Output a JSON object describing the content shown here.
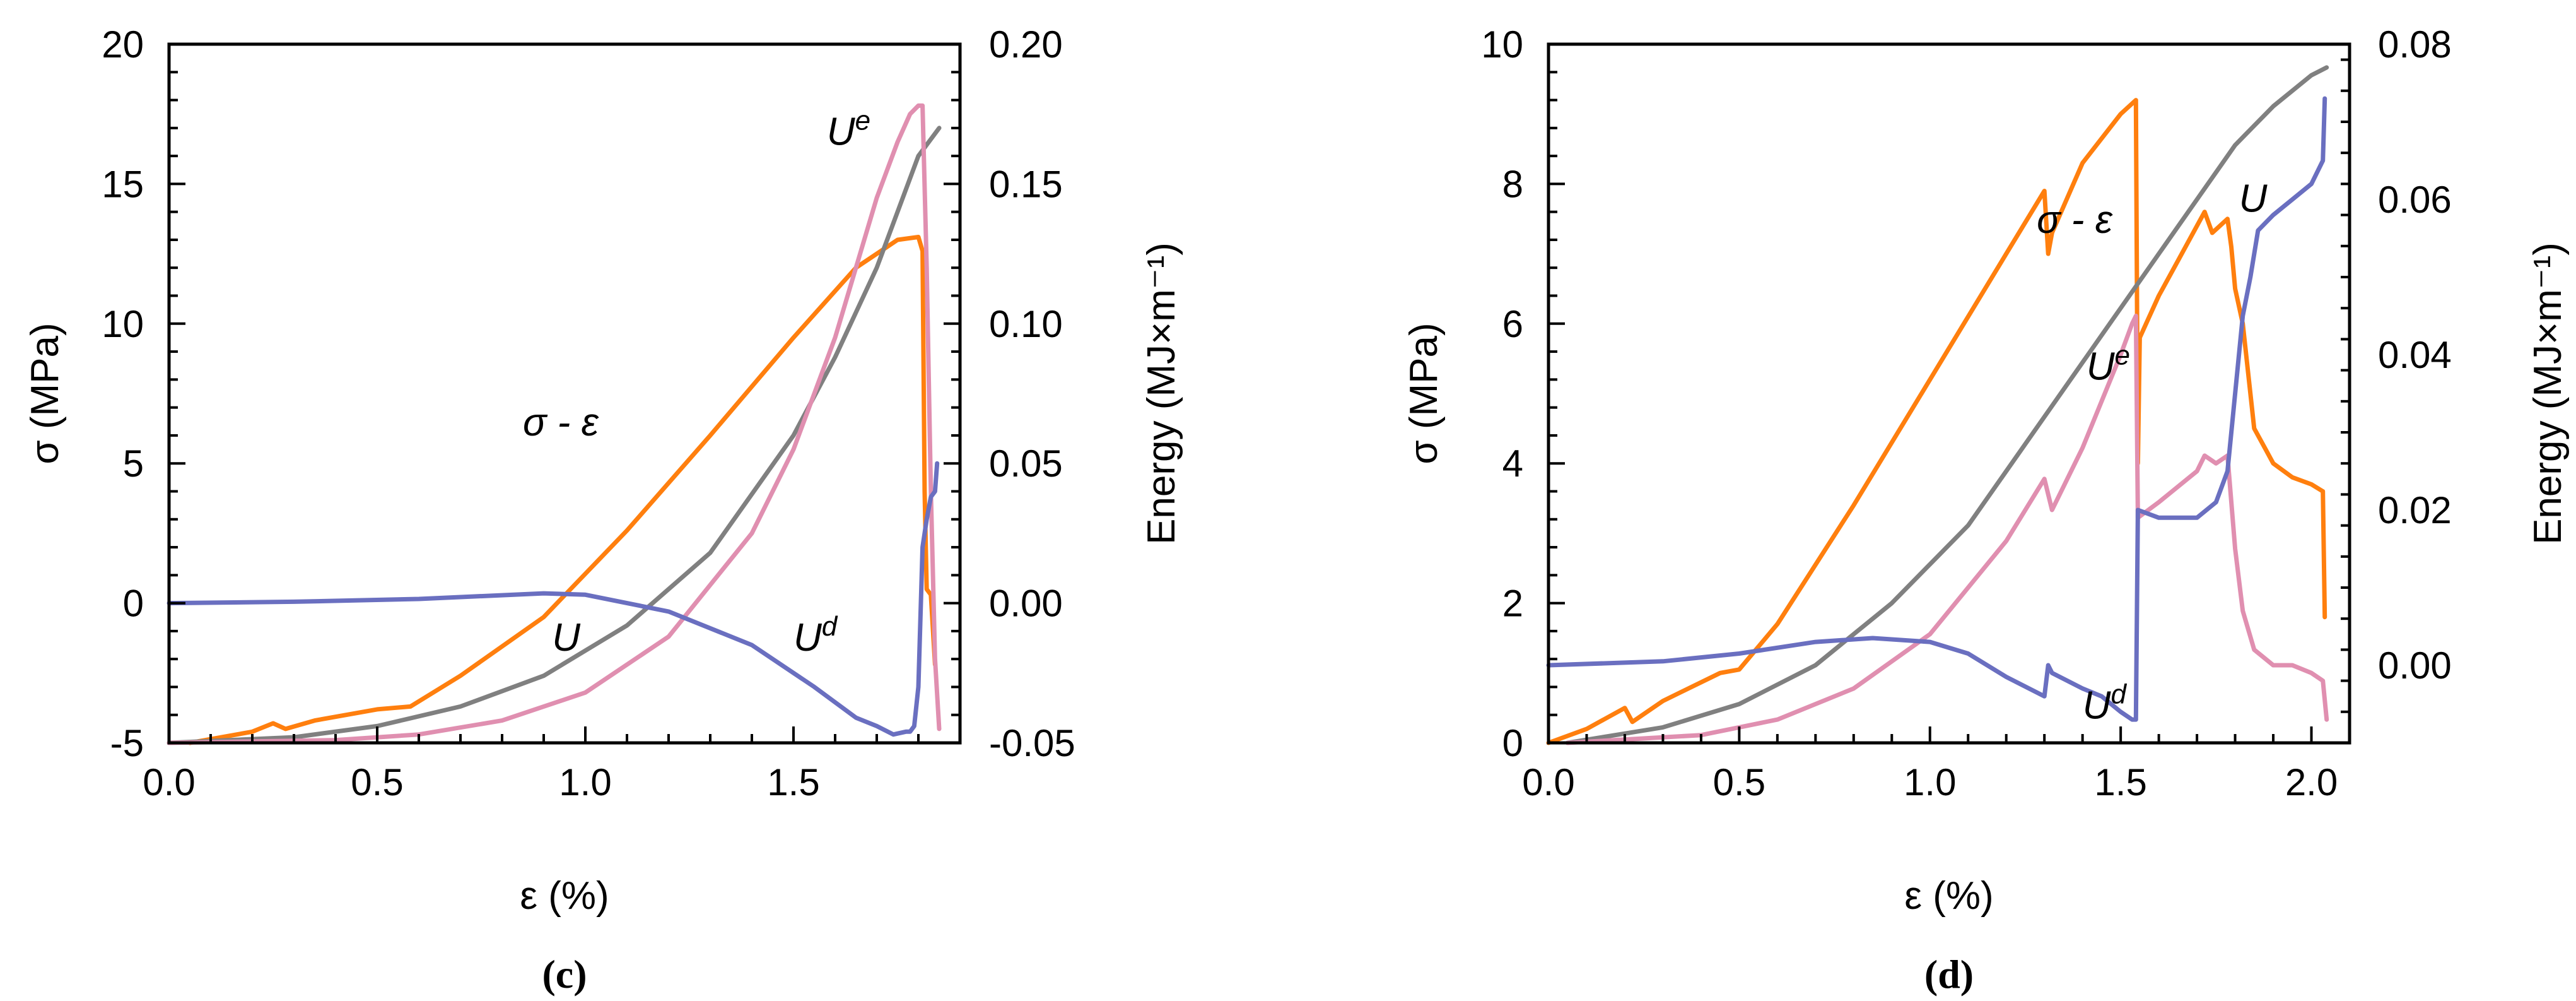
{
  "chart_data": [
    {
      "type": "line",
      "panel_label": "(c)",
      "xlabel": "ε (%)",
      "ylabel": "σ (MPa)",
      "y2label": "Energy (MJ×m⁻¹)",
      "xlim": [
        0,
        1.9
      ],
      "ylim": [
        -5,
        20
      ],
      "y2lim": [
        -0.05,
        0.2
      ],
      "xticks": [
        "0.0",
        "0.5",
        "1.0",
        "1.5"
      ],
      "xtick_values": [
        0,
        0.5,
        1.0,
        1.5
      ],
      "yticks": [
        "-5",
        "0",
        "5",
        "10",
        "15",
        "20"
      ],
      "ytick_values": [
        -5,
        0,
        5,
        10,
        15,
        20
      ],
      "y2ticks": [
        "-0.05",
        "0.00",
        "0.05",
        "0.10",
        "0.15",
        "0.20"
      ],
      "y2tick_values": [
        -0.05,
        0,
        0.05,
        0.1,
        0.15,
        0.2
      ],
      "series": [
        {
          "name": "σ - ε",
          "axis": "left",
          "color": "#ff7f0e",
          "x": [
            0.05,
            0.2,
            0.25,
            0.28,
            0.35,
            0.5,
            0.58,
            0.7,
            0.9,
            1.1,
            1.3,
            1.5,
            1.65,
            1.75,
            1.8,
            1.81,
            1.815,
            1.82,
            1.83,
            1.84
          ],
          "y": [
            -5.0,
            -4.6,
            -4.3,
            -4.5,
            -4.2,
            -3.8,
            -3.7,
            -2.6,
            -0.5,
            2.6,
            6.0,
            9.5,
            12.0,
            13.0,
            13.1,
            12.6,
            4.0,
            0.5,
            0.3,
            -2.2
          ]
        },
        {
          "name": "U",
          "axis": "right",
          "color": "#808080",
          "x": [
            0.0,
            0.3,
            0.5,
            0.7,
            0.9,
            1.1,
            1.3,
            1.5,
            1.6,
            1.7,
            1.8,
            1.85
          ],
          "y": [
            -0.05,
            -0.048,
            -0.044,
            -0.037,
            -0.026,
            -0.008,
            0.018,
            0.06,
            0.088,
            0.12,
            0.16,
            0.17
          ]
        },
        {
          "name": "Ue",
          "axis": "right",
          "color": "#e08fb0",
          "x": [
            0.0,
            0.4,
            0.6,
            0.8,
            1.0,
            1.2,
            1.4,
            1.5,
            1.6,
            1.7,
            1.75,
            1.78,
            1.8,
            1.81,
            1.82,
            1.83,
            1.84,
            1.85
          ],
          "y": [
            -0.05,
            -0.049,
            -0.047,
            -0.042,
            -0.032,
            -0.012,
            0.025,
            0.055,
            0.095,
            0.145,
            0.165,
            0.175,
            0.178,
            0.178,
            0.12,
            0.04,
            -0.02,
            -0.045
          ]
        },
        {
          "name": "Ud",
          "axis": "right",
          "color": "#6a6fc0",
          "x": [
            0.0,
            0.3,
            0.6,
            0.9,
            1.0,
            1.2,
            1.4,
            1.55,
            1.65,
            1.7,
            1.74,
            1.77,
            1.78,
            1.785,
            1.79,
            1.8,
            1.81,
            1.82,
            1.83,
            1.84,
            1.845
          ],
          "y": [
            0.0,
            0.0005,
            0.0015,
            0.0035,
            0.003,
            -0.003,
            -0.015,
            -0.03,
            -0.041,
            -0.044,
            -0.047,
            -0.046,
            -0.046,
            -0.045,
            -0.044,
            -0.03,
            0.02,
            0.03,
            0.038,
            0.04,
            0.05
          ]
        }
      ],
      "annotations": [
        {
          "text": "σ - ε",
          "x": 0.85,
          "y": 6.0
        },
        {
          "text": "U",
          "x": 0.92,
          "y": -1.7
        },
        {
          "text": "Ud",
          "x": 1.5,
          "y": -1.7
        },
        {
          "text": "Ue",
          "x": 1.58,
          "y": 16.4
        }
      ]
    },
    {
      "type": "line",
      "panel_label": "(d)",
      "xlabel": "ε (%)",
      "ylabel": "σ (MPa)",
      "y2label": "Energy (MJ×m⁻¹)",
      "xlim": [
        0,
        2.1
      ],
      "ylim": [
        0,
        10
      ],
      "y2lim": [
        -0.01,
        0.08
      ],
      "xticks": [
        "0.0",
        "0.5",
        "1.0",
        "1.5",
        "2.0"
      ],
      "xtick_values": [
        0,
        0.5,
        1.0,
        1.5,
        2.0
      ],
      "yticks": [
        "0",
        "2",
        "4",
        "6",
        "8",
        "10"
      ],
      "ytick_values": [
        0,
        2,
        4,
        6,
        8,
        10
      ],
      "y2ticks": [
        "0.00",
        "0.02",
        "0.04",
        "0.06",
        "0.08"
      ],
      "y2tick_values": [
        0,
        0.02,
        0.04,
        0.06,
        0.08
      ],
      "series": [
        {
          "name": "σ - ε",
          "axis": "left",
          "color": "#ff7f0e",
          "x": [
            0.0,
            0.1,
            0.2,
            0.22,
            0.3,
            0.45,
            0.5,
            0.6,
            0.8,
            1.0,
            1.2,
            1.3,
            1.31,
            1.32,
            1.4,
            1.5,
            1.54,
            1.545,
            1.55,
            1.6,
            1.65,
            1.7,
            1.72,
            1.74,
            1.78,
            1.79,
            1.8,
            1.82,
            1.85,
            1.88,
            1.9,
            1.95,
            2.0,
            2.03,
            2.035
          ],
          "y": [
            0.0,
            0.2,
            0.5,
            0.3,
            0.6,
            1.0,
            1.05,
            1.7,
            3.4,
            5.2,
            7.0,
            7.9,
            7.0,
            7.3,
            8.3,
            9.0,
            9.2,
            4.0,
            5.8,
            6.4,
            6.9,
            7.4,
            7.6,
            7.3,
            7.5,
            7.1,
            6.5,
            6.0,
            4.5,
            4.2,
            4.0,
            3.8,
            3.7,
            3.6,
            1.8
          ]
        },
        {
          "name": "U",
          "axis": "right",
          "color": "#808080",
          "x": [
            0.05,
            0.3,
            0.5,
            0.7,
            0.9,
            1.1,
            1.3,
            1.5,
            1.7,
            1.8,
            1.9,
            2.0,
            2.04
          ],
          "y": [
            -0.01,
            -0.008,
            -0.005,
            0.0,
            0.008,
            0.018,
            0.032,
            0.046,
            0.06,
            0.067,
            0.072,
            0.076,
            0.077
          ]
        },
        {
          "name": "Ue",
          "axis": "right",
          "color": "#e08fb0",
          "x": [
            0.05,
            0.4,
            0.6,
            0.8,
            1.0,
            1.2,
            1.3,
            1.32,
            1.4,
            1.5,
            1.53,
            1.54,
            1.545,
            1.6,
            1.7,
            1.72,
            1.75,
            1.78,
            1.8,
            1.82,
            1.85,
            1.9,
            1.95,
            2.0,
            2.03,
            2.04
          ],
          "y": [
            -0.01,
            -0.009,
            -0.007,
            -0.003,
            0.004,
            0.016,
            0.024,
            0.02,
            0.028,
            0.04,
            0.044,
            0.045,
            0.019,
            0.021,
            0.025,
            0.027,
            0.026,
            0.027,
            0.015,
            0.007,
            0.002,
            0.0,
            0.0,
            -0.001,
            -0.002,
            -0.007
          ]
        },
        {
          "name": "Ud",
          "axis": "right",
          "color": "#6a6fc0",
          "x": [
            0.0,
            0.3,
            0.5,
            0.7,
            0.85,
            1.0,
            1.1,
            1.2,
            1.3,
            1.31,
            1.32,
            1.4,
            1.45,
            1.5,
            1.53,
            1.54,
            1.545,
            1.6,
            1.65,
            1.7,
            1.75,
            1.78,
            1.8,
            1.82,
            1.84,
            1.86,
            1.9,
            1.95,
            2.0,
            2.03,
            2.035
          ],
          "y": [
            0.0,
            0.0005,
            0.0015,
            0.003,
            0.0035,
            0.003,
            0.0015,
            -0.0015,
            -0.004,
            0.0,
            -0.001,
            -0.003,
            -0.004,
            -0.006,
            -0.007,
            -0.007,
            0.02,
            0.019,
            0.019,
            0.019,
            0.021,
            0.025,
            0.035,
            0.045,
            0.05,
            0.056,
            0.058,
            0.06,
            0.062,
            0.065,
            0.073
          ]
        }
      ],
      "annotations": [
        {
          "text": "σ - ε",
          "x": 1.28,
          "y": 7.3
        },
        {
          "text": "U",
          "x": 1.81,
          "y": 7.6
        },
        {
          "text": "Ue",
          "x": 1.41,
          "y": 5.2
        },
        {
          "text": "Ud",
          "x": 1.4,
          "y": 0.35
        }
      ]
    }
  ]
}
